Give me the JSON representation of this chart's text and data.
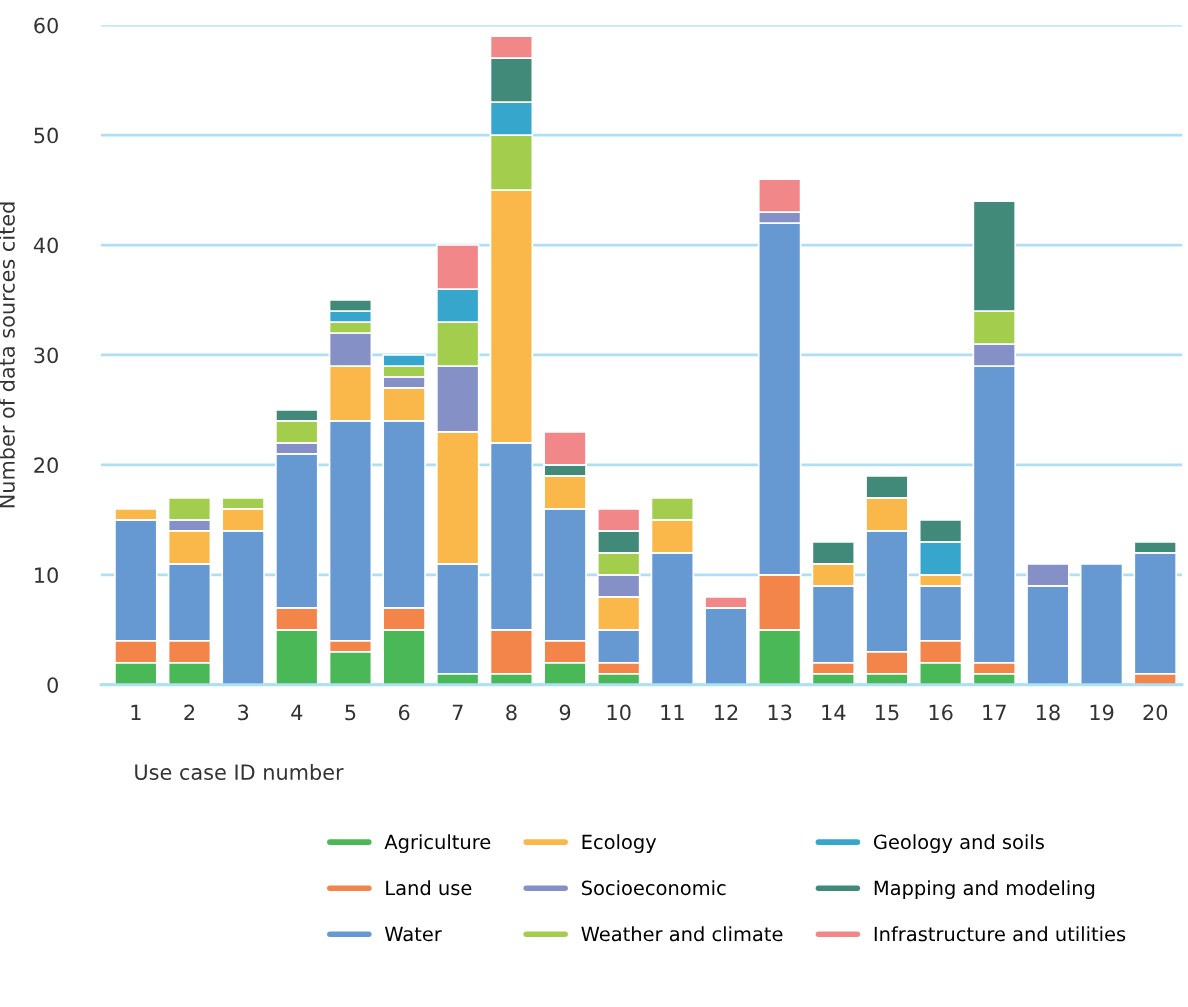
{
  "chart_data": {
    "type": "bar",
    "stacked": true,
    "xlabel": "Use case ID number",
    "ylabel": "Number of data sources cited",
    "categories": [
      "1",
      "2",
      "3",
      "4",
      "5",
      "6",
      "7",
      "8",
      "9",
      "10",
      "11",
      "12",
      "13",
      "14",
      "15",
      "16",
      "17",
      "18",
      "19",
      "20"
    ],
    "ylim": [
      0,
      60
    ],
    "yticks": [
      0,
      10,
      20,
      30,
      40,
      50,
      60
    ],
    "grid": "y",
    "legend": "bottom",
    "series": [
      {
        "name": "Agriculture",
        "color": "#4ab856",
        "values": [
          2,
          2,
          0,
          5,
          3,
          5,
          1,
          1,
          2,
          1,
          0,
          0,
          5,
          1,
          1,
          2,
          1,
          0,
          0,
          0
        ]
      },
      {
        "name": "Land use",
        "color": "#f3844a",
        "values": [
          2,
          2,
          0,
          2,
          1,
          2,
          0,
          4,
          2,
          1,
          0,
          0,
          5,
          1,
          2,
          2,
          1,
          0,
          0,
          1
        ]
      },
      {
        "name": "Water",
        "color": "#6699d1",
        "values": [
          11,
          7,
          14,
          14,
          20,
          17,
          10,
          17,
          12,
          3,
          12,
          7,
          32,
          7,
          11,
          5,
          27,
          9,
          11,
          11
        ]
      },
      {
        "name": "Ecology",
        "color": "#fab84b",
        "values": [
          1,
          3,
          2,
          0,
          5,
          3,
          12,
          23,
          3,
          3,
          3,
          0,
          0,
          2,
          3,
          1,
          0,
          0,
          0,
          0
        ]
      },
      {
        "name": "Socioeconomic",
        "color": "#8490c6",
        "values": [
          0,
          1,
          0,
          1,
          3,
          1,
          6,
          0,
          0,
          2,
          0,
          0,
          1,
          0,
          0,
          0,
          2,
          2,
          0,
          0
        ]
      },
      {
        "name": "Weather and climate",
        "color": "#a3cd4c",
        "values": [
          0,
          2,
          1,
          2,
          1,
          1,
          4,
          5,
          0,
          2,
          2,
          0,
          0,
          0,
          0,
          0,
          3,
          0,
          0,
          0
        ]
      },
      {
        "name": "Geology and soils",
        "color": "#37a6cd",
        "values": [
          0,
          0,
          0,
          0,
          1,
          1,
          3,
          3,
          0,
          0,
          0,
          0,
          0,
          0,
          0,
          3,
          0,
          0,
          0,
          0
        ]
      },
      {
        "name": "Mapping and modeling",
        "color": "#418a7a",
        "values": [
          0,
          0,
          0,
          1,
          1,
          0,
          0,
          4,
          1,
          2,
          0,
          0,
          0,
          2,
          2,
          2,
          10,
          0,
          0,
          1
        ]
      },
      {
        "name": "Infrastructure and utilities",
        "color": "#f2878a",
        "values": [
          0,
          0,
          0,
          0,
          0,
          0,
          4,
          2,
          3,
          2,
          0,
          1,
          3,
          0,
          0,
          0,
          0,
          0,
          0,
          0
        ]
      }
    ]
  }
}
